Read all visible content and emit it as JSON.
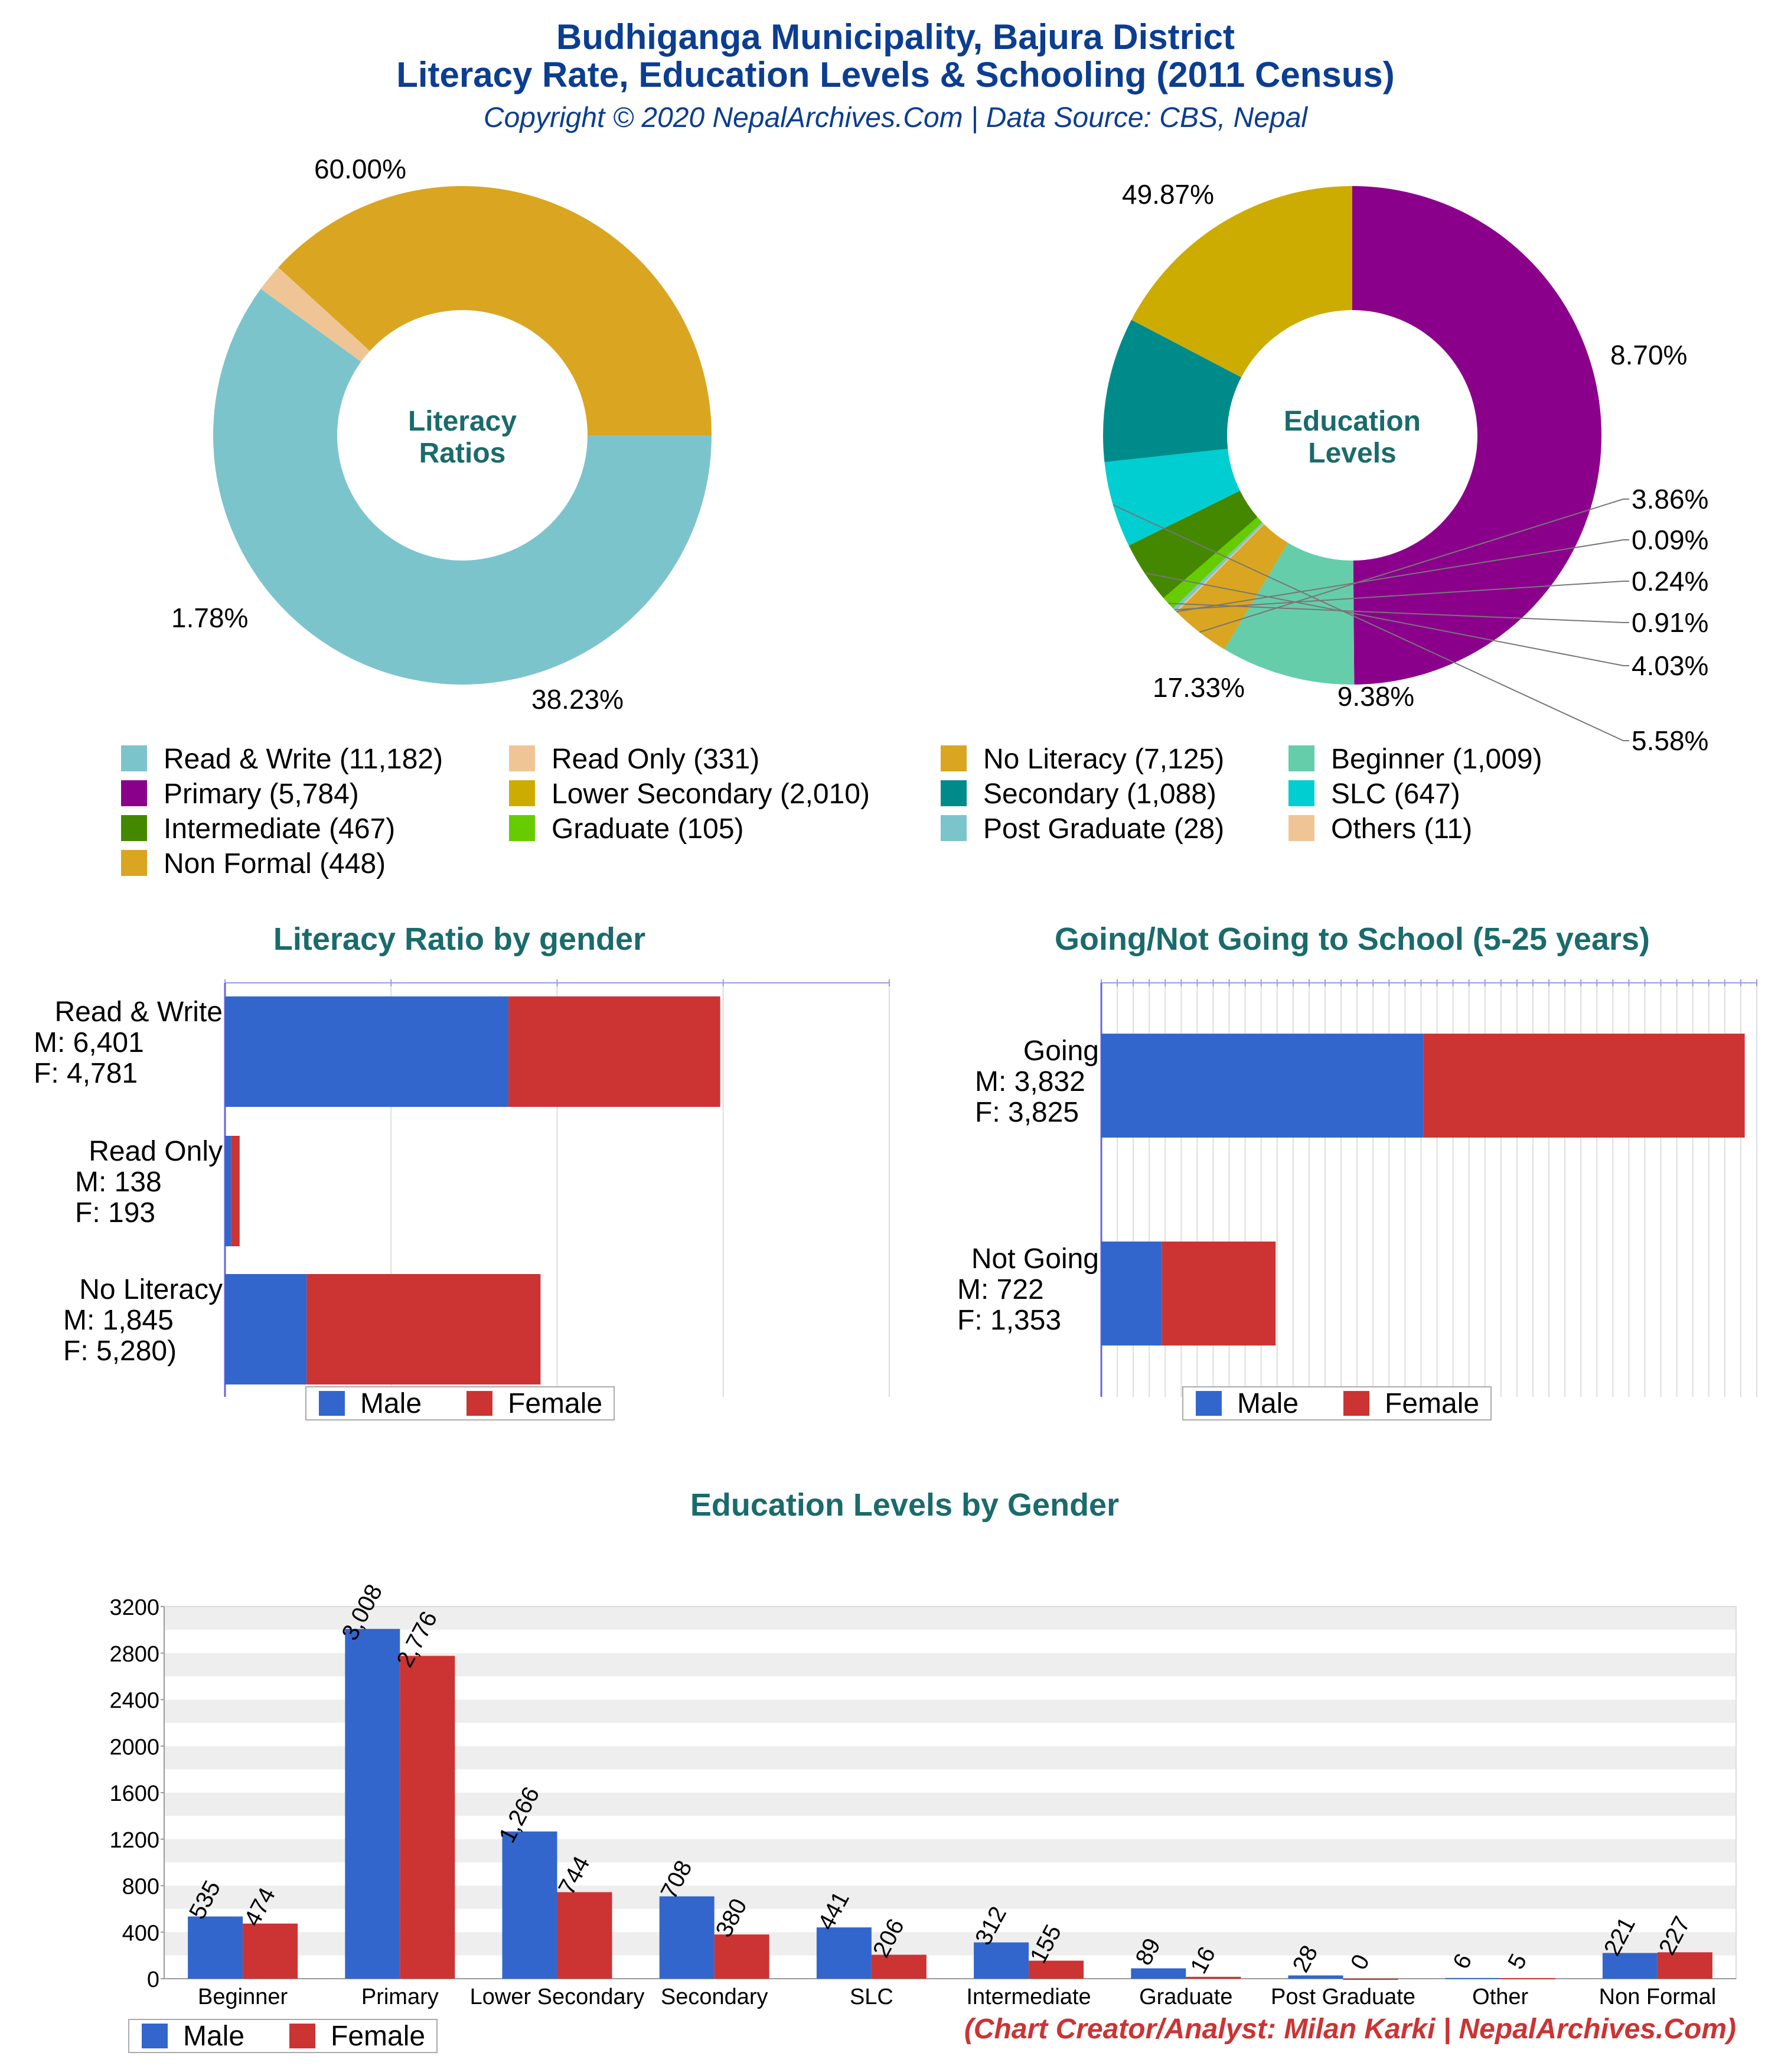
{
  "header": {
    "title_line1": "Budhiganga Municipality, Bajura District",
    "title_line2": "Literacy Rate, Education Levels & Schooling (2011 Census)",
    "subtitle": "Copyright © 2020 NepalArchives.Com | Data Source: CBS, Nepal"
  },
  "footer": {
    "credit": "(Chart Creator/Analyst: Milan Karki | NepalArchives.Com)"
  },
  "colors": {
    "title": "#0b3d91",
    "section_title": "#1a6b6b",
    "male": "#3366cc",
    "female": "#cc3333",
    "credit": "#cc3333"
  },
  "chart_data": [
    {
      "type": "pie",
      "center_label": [
        "Literacy",
        "Ratios"
      ],
      "slices": [
        {
          "label": "Read & Write",
          "value": 11182,
          "pct": "60.00%",
          "color": "#7cc4cc"
        },
        {
          "label": "Read Only",
          "value": 331,
          "pct": "1.78%",
          "color": "#efc596"
        },
        {
          "label": "No Literacy",
          "value": 7125,
          "pct": "38.23%",
          "color": "#daa520"
        }
      ]
    },
    {
      "type": "pie",
      "center_label": [
        "Education",
        "Levels"
      ],
      "slices": [
        {
          "label": "Primary",
          "value": 5784,
          "pct": "49.87%",
          "color": "#8b008b"
        },
        {
          "label": "Beginner",
          "value": 1009,
          "pct": "8.70%",
          "color": "#66cdaa"
        },
        {
          "label": "Non Formal",
          "value": 448,
          "pct": "3.86%",
          "color": "#daa520"
        },
        {
          "label": "Others",
          "value": 11,
          "pct": "0.09%",
          "color": "#efc596"
        },
        {
          "label": "Post Graduate",
          "value": 28,
          "pct": "0.24%",
          "color": "#7cc4cc"
        },
        {
          "label": "Graduate",
          "value": 105,
          "pct": "0.91%",
          "color": "#66cc00"
        },
        {
          "label": "Intermediate",
          "value": 467,
          "pct": "4.03%",
          "color": "#448800"
        },
        {
          "label": "SLC",
          "value": 647,
          "pct": "5.58%",
          "color": "#00ced1"
        },
        {
          "label": "Secondary",
          "value": 1088,
          "pct": "9.38%",
          "color": "#008b8b"
        },
        {
          "label": "Lower Secondary",
          "value": 2010,
          "pct": "17.33%",
          "color": "#ccac00"
        }
      ]
    },
    {
      "type": "bar",
      "orientation": "horizontal",
      "stacked": true,
      "title": "Literacy Ratio by gender",
      "categories": [
        {
          "lines": [
            "Read & Write",
            "M: 6,401",
            "F: 4,781"
          ],
          "male": 6401,
          "female": 4781
        },
        {
          "lines": [
            "Read Only",
            "M: 138",
            "F: 193"
          ],
          "male": 138,
          "female": 193
        },
        {
          "lines": [
            "No Literacy",
            "M: 1,845",
            "F: 5,280)"
          ],
          "male": 1845,
          "female": 5280
        }
      ],
      "xlim": [
        0,
        15000
      ],
      "legend": [
        "Male",
        "Female"
      ]
    },
    {
      "type": "bar",
      "orientation": "horizontal",
      "stacked": true,
      "title": "Going/Not Going to School (5-25 years)",
      "categories": [
        {
          "lines": [
            "Going",
            "M: 3,832",
            "F: 3,825"
          ],
          "male": 3832,
          "female": 3825
        },
        {
          "lines": [
            "Not Going",
            "M: 722",
            "F: 1,353"
          ],
          "male": 722,
          "female": 1353
        }
      ],
      "xlim": [
        0,
        7800
      ],
      "legend": [
        "Male",
        "Female"
      ]
    },
    {
      "type": "bar",
      "title": "Education Levels by Gender",
      "categories": [
        "Beginner",
        "Primary",
        "Lower Secondary",
        "Secondary",
        "SLC",
        "Intermediate",
        "Graduate",
        "Post Graduate",
        "Other",
        "Non Formal"
      ],
      "series": [
        {
          "name": "Male",
          "values": [
            535,
            3008,
            1266,
            708,
            441,
            312,
            89,
            28,
            6,
            221
          ],
          "labels": [
            "535",
            "3,008",
            "1,266",
            "708",
            "441",
            "312",
            "89",
            "28",
            "6",
            "221"
          ]
        },
        {
          "name": "Female",
          "values": [
            474,
            2776,
            744,
            380,
            206,
            155,
            16,
            0,
            5,
            227
          ],
          "labels": [
            "474",
            "2,776",
            "744",
            "380",
            "206",
            "155",
            "16",
            "0",
            "5",
            "227"
          ]
        }
      ],
      "yticks": [
        "0",
        "400",
        "800",
        "1200",
        "1600",
        "2000",
        "2400",
        "2800",
        "3200"
      ],
      "ylim": [
        0,
        3200
      ],
      "legend": [
        "Male",
        "Female"
      ]
    }
  ]
}
